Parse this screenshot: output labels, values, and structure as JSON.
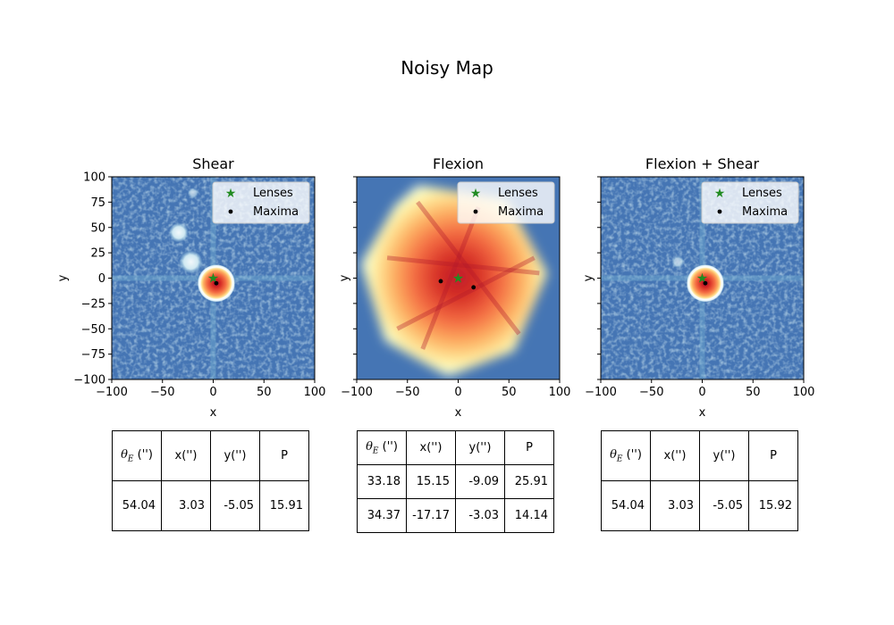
{
  "figure": {
    "title": "Noisy Map"
  },
  "colors": {
    "lens_marker": "#228b22",
    "maxima_marker": "#000000",
    "colormap": [
      "#313695",
      "#4575b4",
      "#74add1",
      "#abd9e9",
      "#e0f3f8",
      "#ffffbf",
      "#fee090",
      "#fdae61",
      "#f46d43",
      "#d73027",
      "#a50026"
    ]
  },
  "legend": {
    "items": [
      "Lenses",
      "Maxima"
    ],
    "location": "upper right"
  },
  "chart_data": [
    {
      "type": "heatmap",
      "title": "Shear",
      "xlabel": "x",
      "ylabel": "y",
      "xlim": [
        -100,
        100
      ],
      "ylim": [
        -100,
        100
      ],
      "xticks": [
        "−100",
        "−50",
        "0",
        "50",
        "100"
      ],
      "yticks": [
        "100",
        "75",
        "50",
        "25",
        "0",
        "−25",
        "−50",
        "−75",
        "−100"
      ],
      "show_ytick_labels": true,
      "background": "noisy-low",
      "lenses": [
        {
          "x": 0,
          "y": 0
        }
      ],
      "maxima": [
        {
          "x": 3.03,
          "y": -5.05
        }
      ],
      "table": {
        "headers": [
          "θE ('')",
          "x('')",
          "y('')",
          "P"
        ],
        "rows": [
          [
            "54.04",
            "3.03",
            "-5.05",
            "15.91"
          ]
        ]
      }
    },
    {
      "type": "heatmap",
      "title": "Flexion",
      "xlabel": "x",
      "ylabel": "y",
      "xlim": [
        -100,
        100
      ],
      "ylim": [
        -100,
        100
      ],
      "xticks": [
        "−100",
        "−50",
        "0",
        "50",
        "100"
      ],
      "yticks": [
        "100",
        "75",
        "50",
        "25",
        "0",
        "−25",
        "−50",
        "−75",
        "−100"
      ],
      "show_ytick_labels": false,
      "background": "broad-high",
      "lenses": [
        {
          "x": 0,
          "y": 0
        }
      ],
      "maxima": [
        {
          "x": 15.15,
          "y": -9.09
        },
        {
          "x": -17.17,
          "y": -3.03
        }
      ],
      "table": {
        "headers": [
          "θE ('')",
          "x('')",
          "y('')",
          "P"
        ],
        "rows": [
          [
            "33.18",
            "15.15",
            "-9.09",
            "25.91"
          ],
          [
            "34.37",
            "-17.17",
            "-3.03",
            "14.14"
          ]
        ]
      }
    },
    {
      "type": "heatmap",
      "title": "Flexion + Shear",
      "xlabel": "x",
      "ylabel": "y",
      "xlim": [
        -100,
        100
      ],
      "ylim": [
        -100,
        100
      ],
      "xticks": [
        "−100",
        "−50",
        "0",
        "50",
        "100"
      ],
      "yticks": [
        "100",
        "75",
        "50",
        "25",
        "0",
        "−25",
        "−50",
        "−75",
        "−100"
      ],
      "show_ytick_labels": false,
      "background": "noisy-low",
      "lenses": [
        {
          "x": 0,
          "y": 0
        }
      ],
      "maxima": [
        {
          "x": 3.03,
          "y": -5.05
        }
      ],
      "table": {
        "headers": [
          "θE ('')",
          "x('')",
          "y('')",
          "P"
        ],
        "rows": [
          [
            "54.04",
            "3.03",
            "-5.05",
            "15.92"
          ]
        ]
      }
    }
  ]
}
